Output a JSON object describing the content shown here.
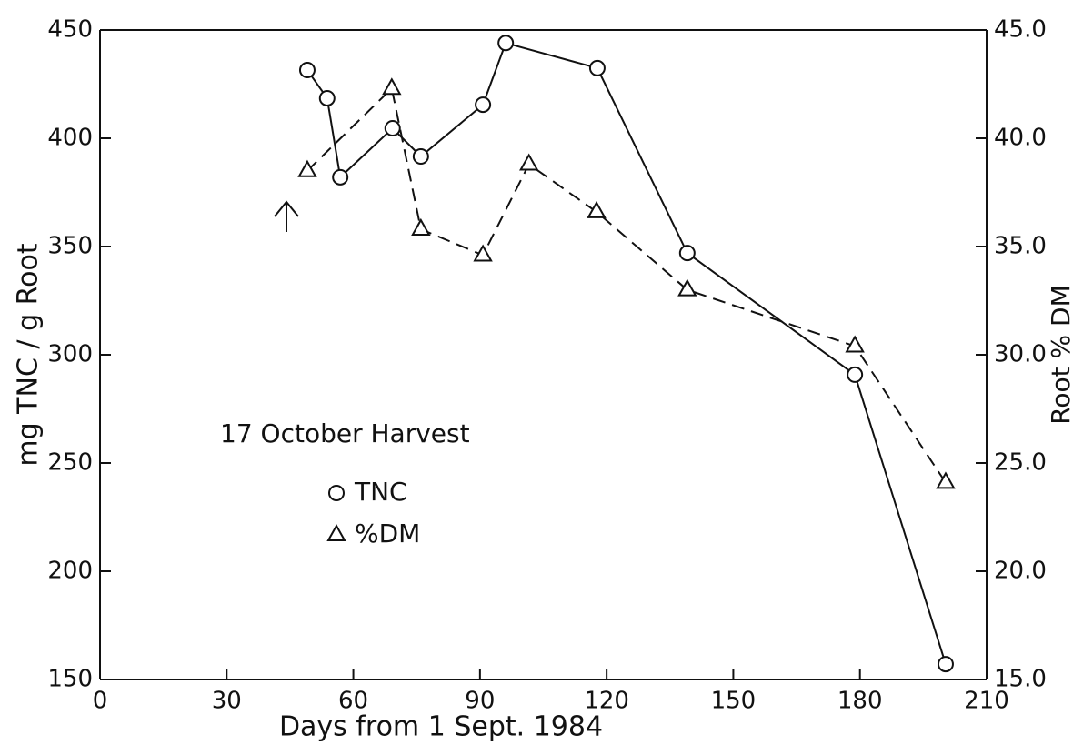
{
  "chart_data": {
    "type": "line",
    "x_label": "Days from 1 Sept. 1984",
    "y_label": "mg TNC / g Root",
    "y2_label": "Root % DM",
    "annotation": "17 October Harvest",
    "xlim": [
      0,
      210
    ],
    "xticks": [
      0,
      30,
      60,
      90,
      120,
      150,
      180,
      210
    ],
    "ylim": [
      150,
      450
    ],
    "yticks": [
      150,
      200,
      250,
      300,
      350,
      400,
      450
    ],
    "y2lim": [
      15,
      45
    ],
    "y2ticks": [
      {
        "value": 15,
        "label": "15.0"
      },
      {
        "value": 20,
        "label": "20.0"
      },
      {
        "value": 25,
        "label": "25.0"
      },
      {
        "value": 30,
        "label": "30.0"
      },
      {
        "value": 35,
        "label": "35.0"
      },
      {
        "value": 40,
        "label": "40.0"
      },
      {
        "value": 45,
        "label": "45.0"
      }
    ],
    "grid": false,
    "series": [
      {
        "name": "TNC",
        "color": "#111111",
        "marker": "circle",
        "dash": false,
        "x": [
          49.1,
          53.8,
          56.9,
          69.3,
          76,
          90.7,
          96.1,
          117.8,
          139.1,
          178.8,
          200.3
        ],
        "values": [
          431.5,
          418.5,
          382,
          404.6,
          391.6,
          415.5,
          444,
          432.4,
          347,
          290.8,
          157.1
        ]
      },
      {
        "name": "%DM",
        "color": "#111111",
        "marker": "triangle",
        "dash": true,
        "axis": "y2",
        "x": [
          49.1,
          69.1,
          76,
          90.7,
          101.6,
          117.6,
          139.1,
          178.8,
          200.3
        ],
        "values": [
          38.5,
          42.3,
          35.8,
          34.6,
          38.8,
          36.6,
          33.0,
          30.4,
          24.1
        ]
      }
    ]
  }
}
